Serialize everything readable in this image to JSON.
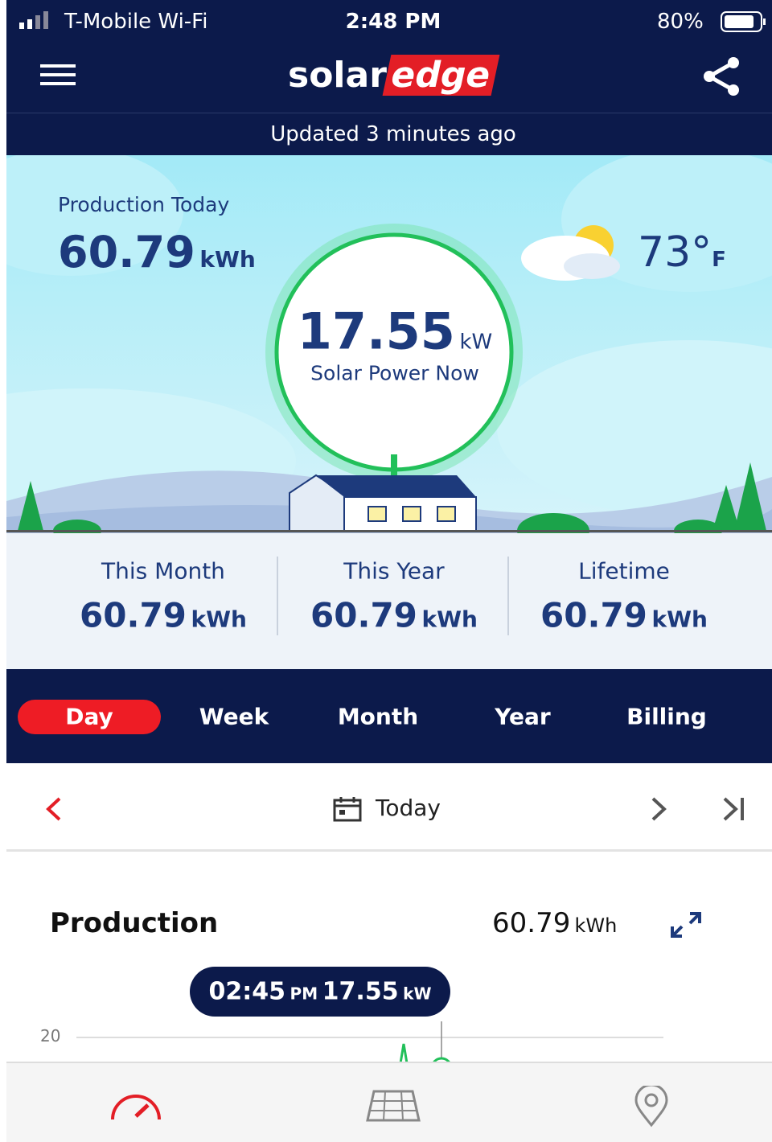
{
  "status_bar": {
    "carrier": "T-Mobile Wi-Fi",
    "time": "2:48 PM",
    "battery": "80%"
  },
  "header": {
    "logo_left": "solar",
    "logo_right": "edge",
    "updated": "Updated 3 minutes ago"
  },
  "hero": {
    "production_label": "Production Today",
    "production_value": "60.79",
    "production_unit": "kWh",
    "temperature": "73°",
    "temperature_unit": "F",
    "power_value": "17.55",
    "power_unit": "kW",
    "power_label": "Solar Power Now"
  },
  "summary": [
    {
      "label": "This Month",
      "value": "60.79",
      "unit": "kWh"
    },
    {
      "label": "This Year",
      "value": "60.79",
      "unit": "kWh"
    },
    {
      "label": "Lifetime",
      "value": "60.79",
      "unit": "kWh"
    }
  ],
  "tabs": [
    "Day",
    "Week",
    "Month",
    "Year",
    "Billing"
  ],
  "date_nav": {
    "label": "Today"
  },
  "production": {
    "title": "Production",
    "value": "60.79",
    "unit": "kWh",
    "tooltip_time": "02:45",
    "tooltip_ampm": "PM",
    "tooltip_value": "17.55",
    "tooltip_unit": "kW",
    "y_tick": "20"
  }
}
